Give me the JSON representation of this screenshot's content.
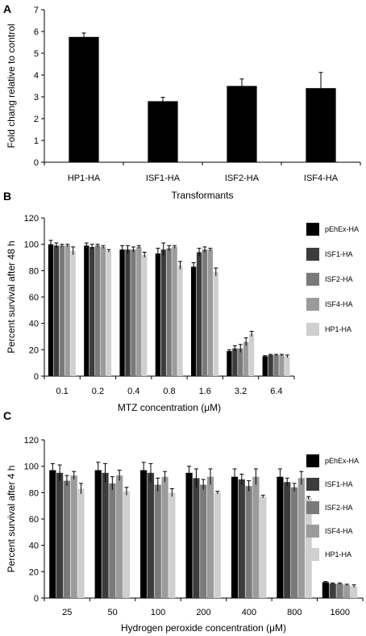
{
  "chart_data": [
    {
      "panel": "A",
      "type": "bar",
      "xlabel": "Transformants",
      "ylabel": "Fold chang relative to control",
      "ylim": [
        0,
        7
      ],
      "yticks": [
        0,
        1,
        2,
        3,
        4,
        5,
        6,
        7
      ],
      "categories": [
        "HP1-HA",
        "ISF1-HA",
        "ISF2-HA",
        "ISF4-HA"
      ],
      "values": [
        5.75,
        2.8,
        3.5,
        3.4
      ],
      "errors": [
        0.18,
        0.18,
        0.32,
        0.72
      ],
      "color": "#000000"
    },
    {
      "panel": "B",
      "type": "bar",
      "xlabel": "MTZ concentration (μM)",
      "ylabel": "Percent survival after 48 h",
      "ylim": [
        0,
        120
      ],
      "yticks": [
        0,
        20,
        40,
        60,
        80,
        100,
        120
      ],
      "categories": [
        "0.1",
        "0.2",
        "0.4",
        "0.8",
        "1.6",
        "3.2",
        "6.4"
      ],
      "series": [
        {
          "name": "pEhEx-HA",
          "color": "#000000",
          "values": [
            100,
            99,
            96,
            93,
            83,
            19,
            15
          ],
          "errors": [
            3,
            2,
            3,
            4,
            3,
            1,
            0.5
          ]
        },
        {
          "name": "ISF1-HA",
          "color": "#3c3c3c",
          "values": [
            99,
            98,
            96,
            96,
            94,
            21,
            16
          ],
          "errors": [
            2,
            2,
            3,
            5,
            3,
            2,
            0.5
          ]
        },
        {
          "name": "ISF2-HA",
          "color": "#7a7a7a",
          "values": [
            99,
            99,
            96,
            97,
            96,
            21,
            16
          ],
          "errors": [
            1,
            1,
            2,
            2,
            2,
            3,
            0.5
          ]
        },
        {
          "name": "ISF4-HA",
          "color": "#9b9b9b",
          "values": [
            99,
            98,
            98,
            98,
            96,
            26,
            16
          ],
          "errors": [
            1,
            1,
            1,
            1,
            1,
            3,
            0.5
          ]
        },
        {
          "name": "HP1-HA",
          "color": "#cfcfcf",
          "values": [
            95,
            95,
            92,
            84,
            79,
            32,
            15
          ],
          "errors": [
            3,
            1,
            2,
            3,
            3,
            2,
            1
          ]
        }
      ]
    },
    {
      "panel": "C",
      "type": "bar",
      "xlabel": "Hydrogen peroxide concentration (μM)",
      "ylabel": "Percent survival after 4 h",
      "ylim": [
        0,
        120
      ],
      "yticks": [
        0,
        20,
        40,
        60,
        80,
        100,
        120
      ],
      "categories": [
        "25",
        "50",
        "100",
        "200",
        "400",
        "800",
        "1600"
      ],
      "series": [
        {
          "name": "pEhEx-HA",
          "color": "#000000",
          "values": [
            97,
            97,
            97,
            95,
            92,
            92,
            12
          ],
          "errors": [
            5,
            6,
            6,
            5,
            6,
            6,
            0.5
          ]
        },
        {
          "name": "ISF1-HA",
          "color": "#3c3c3c",
          "values": [
            95,
            95,
            95,
            91,
            90,
            88,
            11
          ],
          "errors": [
            6,
            7,
            7,
            7,
            4,
            3,
            0.5
          ]
        },
        {
          "name": "ISF2-HA",
          "color": "#7a7a7a",
          "values": [
            89,
            87,
            86,
            86,
            85,
            84,
            11
          ],
          "errors": [
            4,
            5,
            5,
            4,
            4,
            3,
            0.5
          ]
        },
        {
          "name": "ISF4-HA",
          "color": "#9b9b9b",
          "values": [
            93,
            93,
            92,
            92,
            92,
            91,
            10
          ],
          "errors": [
            3,
            4,
            4,
            6,
            6,
            5,
            0.5
          ]
        },
        {
          "name": "HP1-HA",
          "color": "#cfcfcf",
          "values": [
            83,
            81,
            80,
            80,
            77,
            76,
            9
          ],
          "errors": [
            4,
            3,
            3,
            1,
            1,
            1,
            1
          ]
        }
      ]
    }
  ]
}
